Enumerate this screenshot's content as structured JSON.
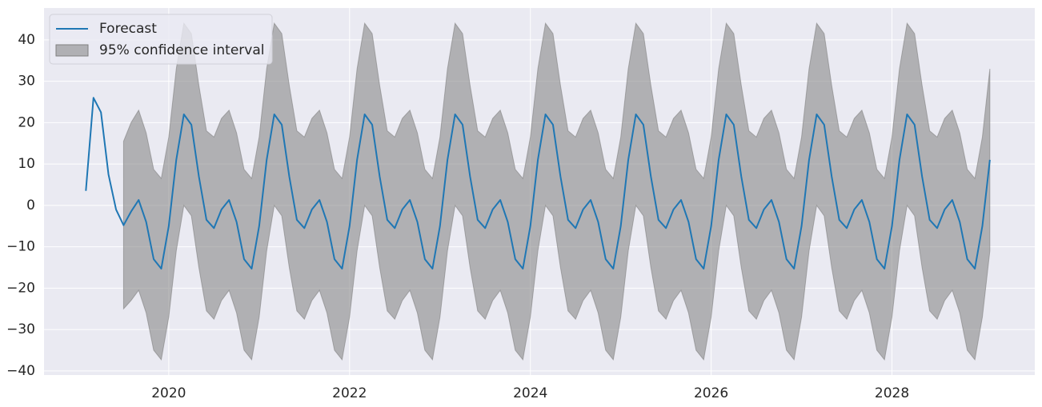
{
  "chart_data": {
    "type": "line",
    "x": [
      2019.083,
      2019.167,
      2019.25,
      2019.333,
      2019.417,
      2019.5,
      2019.583,
      2019.667,
      2019.75,
      2019.833,
      2019.917,
      2020,
      2020.083,
      2020.167,
      2020.25,
      2020.333,
      2020.417,
      2020.5,
      2020.583,
      2020.667,
      2020.75,
      2020.833,
      2020.917,
      2021,
      2021.083,
      2021.167,
      2021.25,
      2021.333,
      2021.417,
      2021.5,
      2021.583,
      2021.667,
      2021.75,
      2021.833,
      2021.917,
      2022,
      2022.083,
      2022.167,
      2022.25,
      2022.333,
      2022.417,
      2022.5,
      2022.583,
      2022.667,
      2022.75,
      2022.833,
      2022.917,
      2023,
      2023.083,
      2023.167,
      2023.25,
      2023.333,
      2023.417,
      2023.5,
      2023.583,
      2023.667,
      2023.75,
      2023.833,
      2023.917,
      2024,
      2024.083,
      2024.167,
      2024.25,
      2024.333,
      2024.417,
      2024.5,
      2024.583,
      2024.667,
      2024.75,
      2024.833,
      2024.917,
      2025,
      2025.083,
      2025.167,
      2025.25,
      2025.333,
      2025.417,
      2025.5,
      2025.583,
      2025.667,
      2025.75,
      2025.833,
      2025.917,
      2026,
      2026.083,
      2026.167,
      2026.25,
      2026.333,
      2026.417,
      2026.5,
      2026.583,
      2026.667,
      2026.75,
      2026.833,
      2026.917,
      2027,
      2027.083,
      2027.167,
      2027.25,
      2027.333,
      2027.417,
      2027.5,
      2027.583,
      2027.667,
      2027.75,
      2027.833,
      2027.917,
      2028,
      2028.083,
      2028.167,
      2028.25,
      2028.333,
      2028.417,
      2028.5,
      2028.583,
      2028.667,
      2028.75,
      2028.833,
      2028.917,
      2029,
      2029.083
    ],
    "series": [
      {
        "name": "Forecast",
        "color": "#1f77b4",
        "values": [
          3.5,
          26,
          22.5,
          7.5,
          -1,
          -4.8,
          -1.5,
          1.3,
          -4,
          -13,
          -15.3,
          -5,
          11,
          22,
          19.5,
          7,
          -3.5,
          -5.5,
          -1,
          1.3,
          -4,
          -13,
          -15.3,
          -5,
          11,
          22,
          19.5,
          7,
          -3.5,
          -5.5,
          -1,
          1.3,
          -4,
          -13,
          -15.3,
          -5,
          11,
          22,
          19.5,
          7,
          -3.5,
          -5.5,
          -1,
          1.3,
          -4,
          -13,
          -15.3,
          -5,
          11,
          22,
          19.5,
          7,
          -3.5,
          -5.5,
          -1,
          1.3,
          -4,
          -13,
          -15.3,
          -5,
          11,
          22,
          19.5,
          7,
          -3.5,
          -5.5,
          -1,
          1.3,
          -4,
          -13,
          -15.3,
          -5,
          11,
          22,
          19.5,
          7,
          -3.5,
          -5.5,
          -1,
          1.3,
          -4,
          -13,
          -15.3,
          -5,
          11,
          22,
          19.5,
          7,
          -3.5,
          -5.5,
          -1,
          1.3,
          -4,
          -13,
          -15.3,
          -5,
          11,
          22,
          19.5,
          7,
          -3.5,
          -5.5,
          -1,
          1.3,
          -4,
          -13,
          -15.3,
          -5,
          11,
          22,
          19.5,
          7,
          -3.5,
          -5.5,
          -1,
          1.3,
          -4,
          -13,
          -15.3,
          -5,
          11
        ]
      },
      {
        "name": "95% confidence interval",
        "color": "#808080",
        "upper": [
          null,
          null,
          null,
          null,
          null,
          15.5,
          20,
          23,
          17.5,
          8.7,
          6.5,
          16.5,
          33,
          44,
          41.5,
          29,
          18,
          16.5,
          21,
          23,
          17.5,
          8.7,
          6.5,
          16.5,
          33,
          44,
          41.5,
          29,
          18,
          16.5,
          21,
          23,
          17.5,
          8.7,
          6.5,
          16.5,
          33,
          44,
          41.5,
          29,
          18,
          16.5,
          21,
          23,
          17.5,
          8.7,
          6.5,
          16.5,
          33,
          44,
          41.5,
          29,
          18,
          16.5,
          21,
          23,
          17.5,
          8.7,
          6.5,
          16.5,
          33,
          44,
          41.5,
          29,
          18,
          16.5,
          21,
          23,
          17.5,
          8.7,
          6.5,
          16.5,
          33,
          44,
          41.5,
          29,
          18,
          16.5,
          21,
          23,
          17.5,
          8.7,
          6.5,
          16.5,
          33,
          44,
          41.5,
          29,
          18,
          16.5,
          21,
          23,
          17.5,
          8.7,
          6.5,
          16.5,
          33,
          44,
          41.5,
          29,
          18,
          16.5,
          21,
          23,
          17.5,
          8.7,
          6.5,
          16.5,
          33,
          44,
          41.5,
          29,
          18,
          16.5,
          21,
          23,
          17.5,
          8.7,
          6.5,
          16.5,
          33
        ],
        "lower": [
          null,
          null,
          null,
          null,
          null,
          -25,
          -23,
          -20.5,
          -26,
          -35,
          -37.3,
          -27,
          -11,
          0,
          -2.5,
          -15,
          -25.5,
          -27.5,
          -23,
          -20.5,
          -26,
          -35,
          -37.3,
          -27,
          -11,
          0,
          -2.5,
          -15,
          -25.5,
          -27.5,
          -23,
          -20.5,
          -26,
          -35,
          -37.3,
          -27,
          -11,
          0,
          -2.5,
          -15,
          -25.5,
          -27.5,
          -23,
          -20.5,
          -26,
          -35,
          -37.3,
          -27,
          -11,
          0,
          -2.5,
          -15,
          -25.5,
          -27.5,
          -23,
          -20.5,
          -26,
          -35,
          -37.3,
          -27,
          -11,
          0,
          -2.5,
          -15,
          -25.5,
          -27.5,
          -23,
          -20.5,
          -26,
          -35,
          -37.3,
          -27,
          -11,
          0,
          -2.5,
          -15,
          -25.5,
          -27.5,
          -23,
          -20.5,
          -26,
          -35,
          -37.3,
          -27,
          -11,
          0,
          -2.5,
          -15,
          -25.5,
          -27.5,
          -23,
          -20.5,
          -26,
          -35,
          -37.3,
          -27,
          -11,
          0,
          -2.5,
          -15,
          -25.5,
          -27.5,
          -23,
          -20.5,
          -26,
          -35,
          -37.3,
          -27,
          -11,
          0,
          -2.5,
          -15,
          -25.5,
          -27.5,
          -23,
          -20.5,
          -26,
          -35,
          -37.3,
          -27,
          -11
        ]
      }
    ],
    "xlim": [
      2018.62,
      2029.58
    ],
    "xticks": [
      2020,
      2022,
      2024,
      2026,
      2028
    ],
    "ylim": [
      -41,
      47.7
    ],
    "yticks": [
      {
        "value": -40,
        "label": "−40"
      },
      {
        "value": -30,
        "label": "−30"
      },
      {
        "value": -20,
        "label": "−20"
      },
      {
        "value": -10,
        "label": "−10"
      },
      0,
      10,
      20,
      30,
      40
    ],
    "grid": true,
    "legend": "upper-left"
  }
}
